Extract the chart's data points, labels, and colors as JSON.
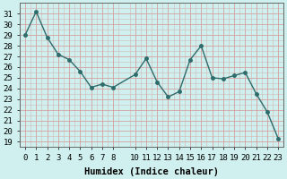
{
  "x": [
    0,
    1,
    2,
    3,
    4,
    5,
    6,
    7,
    8,
    10,
    11,
    12,
    13,
    14,
    15,
    16,
    17,
    18,
    19,
    20,
    21,
    22,
    23
  ],
  "y": [
    29.0,
    31.2,
    28.8,
    27.2,
    26.7,
    25.6,
    24.1,
    24.4,
    24.1,
    25.3,
    26.8,
    24.6,
    23.2,
    23.7,
    26.7,
    28.0,
    25.0,
    24.9,
    25.2,
    25.5,
    23.5,
    21.8,
    19.3
  ],
  "line_color": "#2e6b6b",
  "marker": "o",
  "marker_size": 2.5,
  "line_width": 1.0,
  "bg_color": "#cff0ee",
  "grid_color": "#d4a0a0",
  "xlabel": "Humidex (Indice chaleur)",
  "ylim": [
    19,
    32
  ],
  "xlim": [
    -0.5,
    23.5
  ],
  "yticks": [
    19,
    20,
    21,
    22,
    23,
    24,
    25,
    26,
    27,
    28,
    29,
    30,
    31
  ],
  "xticks": [
    0,
    1,
    2,
    3,
    4,
    5,
    6,
    7,
    8,
    10,
    11,
    12,
    13,
    14,
    15,
    16,
    17,
    18,
    19,
    20,
    21,
    22,
    23
  ],
  "xlabel_fontsize": 7.5,
  "tick_fontsize": 6.5
}
